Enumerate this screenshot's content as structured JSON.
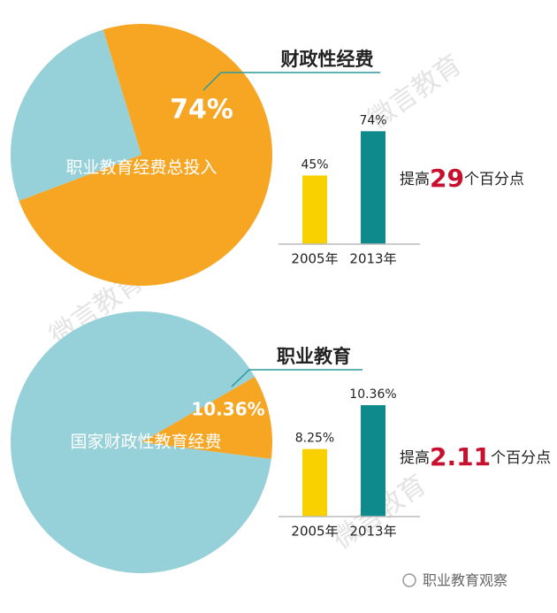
{
  "chart_data": [
    {
      "type": "pie",
      "title": "财政性经费",
      "labels": [
        "财政性经费",
        "职业教育经费总投入"
      ],
      "values": [
        74,
        26
      ],
      "value_labels": [
        "74%",
        null
      ],
      "colors": [
        "#f6a623",
        "#96d0d8"
      ]
    },
    {
      "type": "bar",
      "categories": [
        "2005年",
        "2013年"
      ],
      "values": [
        45,
        74
      ],
      "value_labels": [
        "45%",
        "74%"
      ],
      "colors": [
        "#f9d100",
        "#0f8a8c"
      ],
      "ylim": [
        0,
        80
      ],
      "annotation": [
        "提高",
        "29",
        "个百分点"
      ]
    },
    {
      "type": "pie",
      "title": "职业教育",
      "labels": [
        "职业教育",
        "国家财政性教育经费"
      ],
      "values": [
        10.36,
        89.64
      ],
      "value_labels": [
        "10.36%",
        null
      ],
      "colors": [
        "#f6a623",
        "#96d0d8"
      ]
    },
    {
      "type": "bar",
      "categories": [
        "2005年",
        "2013年"
      ],
      "values": [
        8.25,
        10.36
      ],
      "value_labels": [
        "8.25%",
        "10.36%"
      ],
      "colors": [
        "#f9d100",
        "#0f8a8c"
      ],
      "ylim": [
        5,
        11
      ],
      "annotation": [
        "提高",
        "2.11",
        "个百分点"
      ]
    }
  ],
  "watermark": "微言教育",
  "footer": "职业教育观察"
}
